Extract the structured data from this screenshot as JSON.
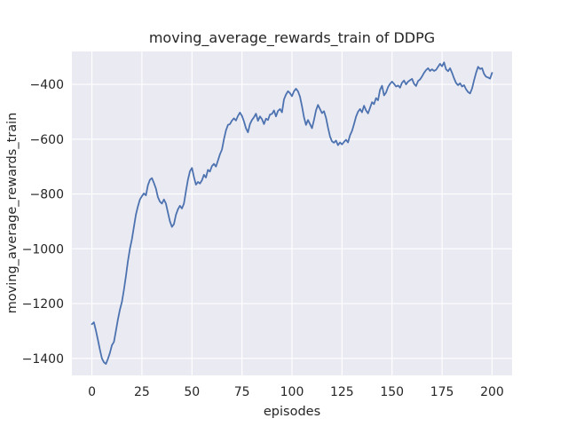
{
  "chart_data": {
    "type": "line",
    "title": "moving_average_rewards_train of DDPG",
    "xlabel": "episodes",
    "ylabel": "moving_average_rewards_train",
    "x_ticks": [
      0,
      25,
      50,
      75,
      100,
      125,
      150,
      175,
      200
    ],
    "y_ticks": [
      -400,
      -600,
      -800,
      -1000,
      -1200,
      -1400
    ],
    "xlim": [
      -10,
      210
    ],
    "ylim": [
      -1462,
      -280
    ],
    "grid": true,
    "legend_position": "none",
    "colors": {
      "line": "#4c72b0",
      "plot_background": "#eaeaf2",
      "grid": "#ffffff",
      "text": "#262626",
      "figure_background": "#ffffff"
    },
    "series": [
      {
        "name": "moving_average_rewards_train",
        "x_start": 0,
        "x_step": 1,
        "values": [
          -1275,
          -1268,
          -1298,
          -1332,
          -1368,
          -1400,
          -1414,
          -1420,
          -1402,
          -1380,
          -1352,
          -1340,
          -1300,
          -1258,
          -1222,
          -1194,
          -1150,
          -1100,
          -1045,
          -1000,
          -965,
          -920,
          -875,
          -845,
          -820,
          -808,
          -798,
          -805,
          -768,
          -748,
          -742,
          -760,
          -780,
          -812,
          -828,
          -835,
          -820,
          -835,
          -868,
          -900,
          -920,
          -910,
          -876,
          -856,
          -843,
          -853,
          -835,
          -790,
          -748,
          -717,
          -705,
          -738,
          -766,
          -756,
          -762,
          -750,
          -730,
          -740,
          -712,
          -718,
          -698,
          -690,
          -700,
          -678,
          -655,
          -638,
          -600,
          -568,
          -548,
          -545,
          -532,
          -524,
          -532,
          -515,
          -503,
          -515,
          -535,
          -560,
          -575,
          -545,
          -530,
          -520,
          -507,
          -533,
          -517,
          -527,
          -545,
          -525,
          -530,
          -510,
          -508,
          -495,
          -517,
          -497,
          -490,
          -502,
          -455,
          -437,
          -425,
          -432,
          -443,
          -425,
          -416,
          -425,
          -445,
          -480,
          -520,
          -548,
          -530,
          -545,
          -560,
          -530,
          -495,
          -475,
          -490,
          -505,
          -498,
          -522,
          -558,
          -590,
          -608,
          -613,
          -605,
          -622,
          -612,
          -619,
          -610,
          -602,
          -612,
          -586,
          -570,
          -545,
          -518,
          -500,
          -490,
          -502,
          -478,
          -495,
          -506,
          -486,
          -465,
          -472,
          -450,
          -458,
          -420,
          -405,
          -440,
          -430,
          -410,
          -398,
          -390,
          -398,
          -408,
          -404,
          -412,
          -394,
          -386,
          -400,
          -390,
          -385,
          -380,
          -398,
          -406,
          -388,
          -382,
          -371,
          -358,
          -348,
          -341,
          -351,
          -345,
          -351,
          -347,
          -336,
          -325,
          -334,
          -320,
          -345,
          -352,
          -341,
          -358,
          -378,
          -395,
          -403,
          -396,
          -408,
          -403,
          -418,
          -428,
          -433,
          -415,
          -385,
          -358,
          -336,
          -344,
          -341,
          -362,
          -372,
          -375,
          -379,
          -358
        ]
      }
    ]
  }
}
